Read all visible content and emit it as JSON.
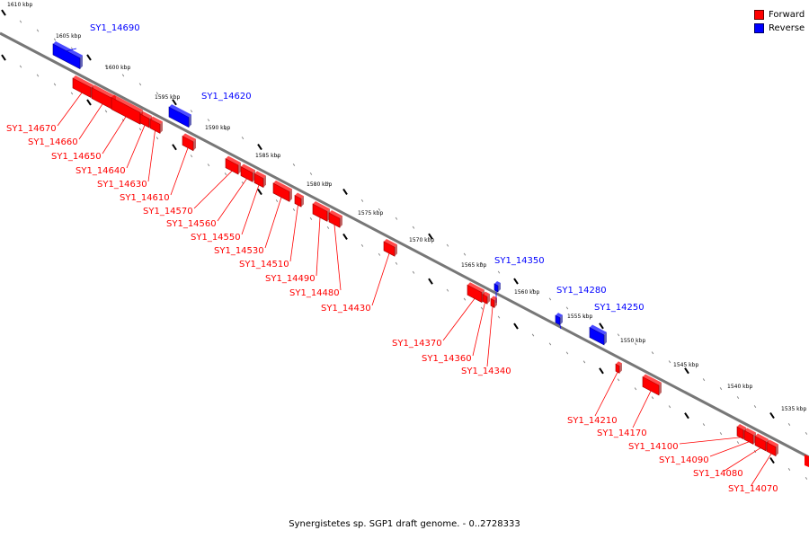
{
  "legend": {
    "forward_label": "Forward",
    "reverse_label": "Reverse",
    "forward_color": "#ff0000",
    "reverse_color": "#0000ff"
  },
  "caption": "Synergistetes sp. SGP1 draft genome. - 0..2728333",
  "coordinates": [
    "1610 kbp",
    "1605 kbp",
    "1600 kbp",
    "1595 kbp",
    "1590 kbp",
    "1585 kbp",
    "1580 kbp",
    "1575 kbp",
    "1570 kbp",
    "1565 kbp",
    "1560 kbp",
    "1555 kbp",
    "1550 kbp",
    "1545 kbp",
    "1540 kbp",
    "1535 kbp"
  ],
  "genes": [
    {
      "name": "SY1_14690",
      "strand": "reverse"
    },
    {
      "name": "SY1_14620",
      "strand": "reverse"
    },
    {
      "name": "SY1_14350",
      "strand": "reverse"
    },
    {
      "name": "SY1_14280",
      "strand": "reverse"
    },
    {
      "name": "SY1_14250",
      "strand": "reverse"
    },
    {
      "name": "SY1_14670",
      "strand": "forward"
    },
    {
      "name": "SY1_14660",
      "strand": "forward"
    },
    {
      "name": "SY1_14650",
      "strand": "forward"
    },
    {
      "name": "SY1_14640",
      "strand": "forward"
    },
    {
      "name": "SY1_14630",
      "strand": "forward"
    },
    {
      "name": "SY1_14610",
      "strand": "forward"
    },
    {
      "name": "SY1_14570",
      "strand": "forward"
    },
    {
      "name": "SY1_14560",
      "strand": "forward"
    },
    {
      "name": "SY1_14550",
      "strand": "forward"
    },
    {
      "name": "SY1_14530",
      "strand": "forward"
    },
    {
      "name": "SY1_14510",
      "strand": "forward"
    },
    {
      "name": "SY1_14490",
      "strand": "forward"
    },
    {
      "name": "SY1_14480",
      "strand": "forward"
    },
    {
      "name": "SY1_14430",
      "strand": "forward"
    },
    {
      "name": "SY1_14370",
      "strand": "forward"
    },
    {
      "name": "SY1_14360",
      "strand": "forward"
    },
    {
      "name": "SY1_14340",
      "strand": "forward"
    },
    {
      "name": "SY1_14210",
      "strand": "forward"
    },
    {
      "name": "SY1_14170",
      "strand": "forward"
    },
    {
      "name": "SY1_14100",
      "strand": "forward"
    },
    {
      "name": "SY1_14090",
      "strand": "forward"
    },
    {
      "name": "SY1_14080",
      "strand": "forward"
    },
    {
      "name": "SY1_14070",
      "strand": "forward"
    }
  ]
}
